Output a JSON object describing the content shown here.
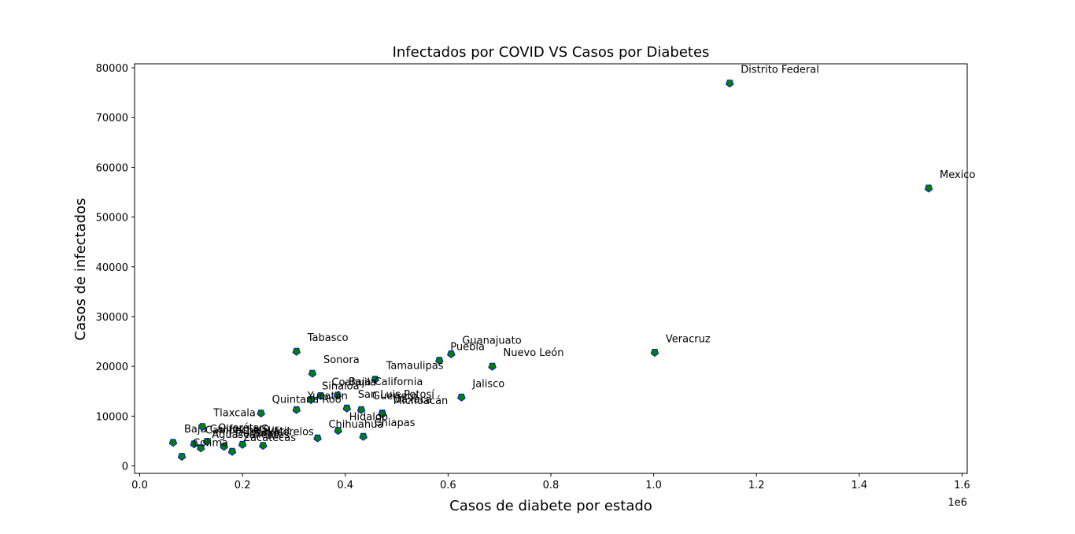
{
  "chart_data": {
    "type": "scatter",
    "title": "Infectados por COVID VS Casos por Diabetes",
    "xlabel": "Casos de diabete por estado",
    "ylabel": "Casos de infectados",
    "x_scale_label": "1e6",
    "xlim": [
      -0.01,
      1.61
    ],
    "ylim": [
      -1500,
      80800
    ],
    "x_ticks": [
      0.0,
      0.2,
      0.4,
      0.6,
      0.8,
      1.0,
      1.2,
      1.4,
      1.6
    ],
    "x_tick_labels": [
      "0.0",
      "0.2",
      "0.4",
      "0.6",
      "0.8",
      "1.0",
      "1.2",
      "1.4",
      "1.6"
    ],
    "y_ticks": [
      0,
      10000,
      20000,
      30000,
      40000,
      50000,
      60000,
      70000,
      80000
    ],
    "y_tick_labels": [
      "0",
      "10000",
      "20000",
      "30000",
      "40000",
      "50000",
      "60000",
      "70000",
      "80000"
    ],
    "grid": false,
    "marker_color": "#007f00",
    "marker_edge_color": "#0000ff",
    "points": [
      {
        "label": "Distrito Federal",
        "x": 1.148,
        "y": 76900
      },
      {
        "label": "Mexico",
        "x": 1.535,
        "y": 55800
      },
      {
        "label": "Veracruz",
        "x": 1.002,
        "y": 22800
      },
      {
        "label": "Tabasco",
        "x": 0.305,
        "y": 23000
      },
      {
        "label": "Guanajuato",
        "x": 0.606,
        "y": 22500
      },
      {
        "label": "Puebla",
        "x": 0.583,
        "y": 21200
      },
      {
        "label": "Nuevo León",
        "x": 0.686,
        "y": 20000
      },
      {
        "label": "Sonora",
        "x": 0.336,
        "y": 18600
      },
      {
        "label": "Tamaulipas",
        "x": 0.458,
        "y": 17400
      },
      {
        "label": "Baja California",
        "x": 0.385,
        "y": 14200
      },
      {
        "label": "Coahuila",
        "x": 0.352,
        "y": 14100
      },
      {
        "label": "Jalisco",
        "x": 0.626,
        "y": 13800
      },
      {
        "label": "Sinaloa",
        "x": 0.333,
        "y": 13300
      },
      {
        "label": "San Luis Potosí",
        "x": 0.403,
        "y": 11600
      },
      {
        "label": "Guerrero",
        "x": 0.431,
        "y": 11300
      },
      {
        "label": "Yucatán",
        "x": 0.305,
        "y": 11300
      },
      {
        "label": "Oaxaca",
        "x": 0.472,
        "y": 10600
      },
      {
        "label": "Michoacán",
        "x": 0.472,
        "y": 10400
      },
      {
        "label": "Quintana Roo",
        "x": 0.236,
        "y": 10600
      },
      {
        "label": "Hidalgo",
        "x": 0.386,
        "y": 7100
      },
      {
        "label": "Chihuahua",
        "x": 0.346,
        "y": 5600
      },
      {
        "label": "Chiapas",
        "x": 0.435,
        "y": 5900
      },
      {
        "label": "Baja California Sur",
        "x": 0.065,
        "y": 4700
      },
      {
        "label": "Tlaxcala",
        "x": 0.122,
        "y": 7900
      },
      {
        "label": "Campeche",
        "x": 0.106,
        "y": 4400
      },
      {
        "label": "Querétaro",
        "x": 0.131,
        "y": 4900
      },
      {
        "label": "Durango",
        "x": 0.164,
        "y": 3900
      },
      {
        "label": "Aguascalientes",
        "x": 0.119,
        "y": 3600
      },
      {
        "label": "Nayarit",
        "x": 0.2,
        "y": 4300
      },
      {
        "label": "Morelos",
        "x": 0.24,
        "y": 4100
      },
      {
        "label": "Zacatecas",
        "x": 0.18,
        "y": 2900
      },
      {
        "label": "Colima",
        "x": 0.082,
        "y": 1900
      }
    ]
  }
}
